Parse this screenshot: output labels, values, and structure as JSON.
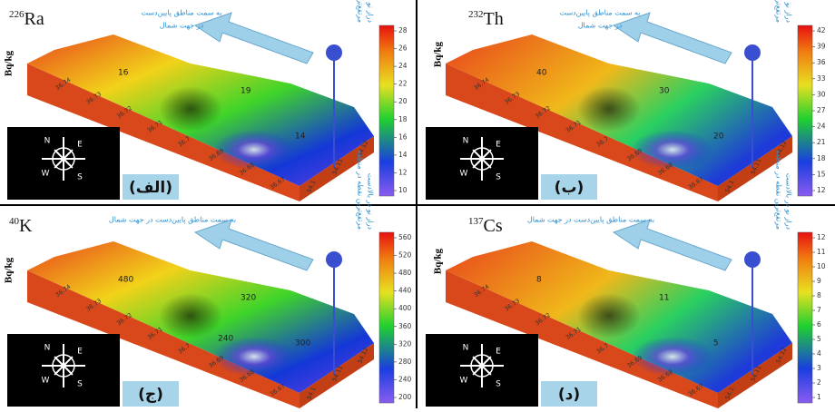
{
  "panels": [
    {
      "mass": "226",
      "element": "Ra",
      "unit": "Bq/kg",
      "letter": "(الف)",
      "arrow_text": [
        "به سمت مناطق پایین‌دست",
        "در جهت شمال"
      ],
      "side_text": [
        "مرتفع‌ترین نقطه در منطقه",
        "دراز نو در بالادست"
      ],
      "colorbar_ticks": [
        "10",
        "12",
        "14",
        "16",
        "18",
        "20",
        "22",
        "24",
        "26",
        "28"
      ],
      "contours": [
        "16",
        "19",
        "14"
      ]
    },
    {
      "mass": "232",
      "element": "Th",
      "unit": "Bq/kg",
      "letter": "(ب)",
      "arrow_text": [
        "به سمت مناطق پایین‌دست",
        "در جهت شمال"
      ],
      "side_text": [
        "مرتفع‌ترین نقطه در منطقه",
        "دراز نو در بالادست"
      ],
      "colorbar_ticks": [
        "12",
        "15",
        "18",
        "21",
        "24",
        "27",
        "30",
        "33",
        "36",
        "39",
        "42"
      ],
      "contours": [
        "40",
        "30",
        "20"
      ]
    },
    {
      "mass": "40",
      "element": "K",
      "unit": "Bq/kg",
      "letter": "(ج)",
      "arrow_text": [
        "به سمت مناطق پایین‌دست در جهت شمال"
      ],
      "side_text": [
        "مرتفع‌ترین نقطه در منطقه",
        "دراز نو در بالادست"
      ],
      "colorbar_ticks": [
        "200",
        "240",
        "280",
        "320",
        "360",
        "400",
        "440",
        "480",
        "520",
        "560"
      ],
      "contours": [
        "480",
        "320",
        "300",
        "240"
      ]
    },
    {
      "mass": "137",
      "element": "Cs",
      "unit": "Bq/kg",
      "letter": "(د)",
      "arrow_text": [
        "به سمت مناطق پایین‌دست در جهت شمال"
      ],
      "side_text": [
        "مرتفع‌ترین نقطه در منطقه",
        "دراز نو در بالادست"
      ],
      "colorbar_ticks": [
        "1",
        "2",
        "3",
        "4",
        "5",
        "6",
        "7",
        "8",
        "9",
        "10",
        "11",
        "12"
      ],
      "contours": [
        "8",
        "11",
        "5"
      ]
    }
  ],
  "lat_ticks": [
    "36.74",
    "36.73",
    "36.72",
    "36.71",
    "36.7",
    "36.69",
    "36.68",
    "36.67"
  ],
  "lon_ticks": [
    "54.1",
    "54.11",
    "54.12"
  ],
  "compass": [
    "N",
    "E",
    "S",
    "W"
  ]
}
